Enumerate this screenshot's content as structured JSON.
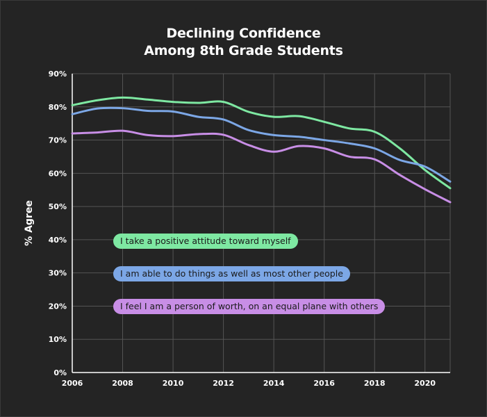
{
  "chart_data": {
    "type": "line",
    "title_line1": "Declining Confidence",
    "title_line2": "Among 8th Grade Students",
    "xlabel": "",
    "ylabel": "% Agree",
    "xlim": [
      2006,
      2021
    ],
    "ylim": [
      0,
      90
    ],
    "x_ticks": [
      2006,
      2008,
      2010,
      2012,
      2014,
      2016,
      2018,
      2020
    ],
    "x_tick_labels": [
      "2006",
      "2008",
      "2010",
      "2012",
      "2014",
      "2016",
      "2018",
      "2020"
    ],
    "y_ticks": [
      0,
      10,
      20,
      30,
      40,
      50,
      60,
      70,
      80,
      90
    ],
    "y_tick_labels": [
      "0%",
      "10%",
      "20%",
      "30%",
      "40%",
      "50%",
      "60%",
      "70%",
      "80%",
      "90%"
    ],
    "grid": true,
    "x": [
      2006,
      2007,
      2008,
      2009,
      2010,
      2011,
      2012,
      2013,
      2014,
      2015,
      2016,
      2017,
      2018,
      2019,
      2020,
      2021
    ],
    "series": [
      {
        "name": "I take a positive attitude toward myself",
        "color": "#7ee8a2",
        "values": [
          80.5,
          82,
          82.8,
          82.2,
          81.5,
          81.2,
          81.5,
          78.5,
          77,
          77.2,
          75.5,
          73.5,
          72.5,
          67.5,
          61,
          55.5
        ]
      },
      {
        "name": "I am able to do things as well as most other people",
        "color": "#7ca7e6",
        "values": [
          77.8,
          79.5,
          79.6,
          78.8,
          78.6,
          77,
          76.2,
          73,
          71.5,
          71,
          70,
          69,
          67.5,
          64,
          62,
          57.5
        ]
      },
      {
        "name": "I feel I am a person of worth, on an equal plane with others",
        "color": "#c88ee6",
        "values": [
          72,
          72.3,
          72.8,
          71.5,
          71.2,
          71.8,
          71.6,
          68.5,
          66.5,
          68.2,
          67.5,
          65,
          64.2,
          59.5,
          55.2,
          51.3
        ]
      }
    ]
  }
}
